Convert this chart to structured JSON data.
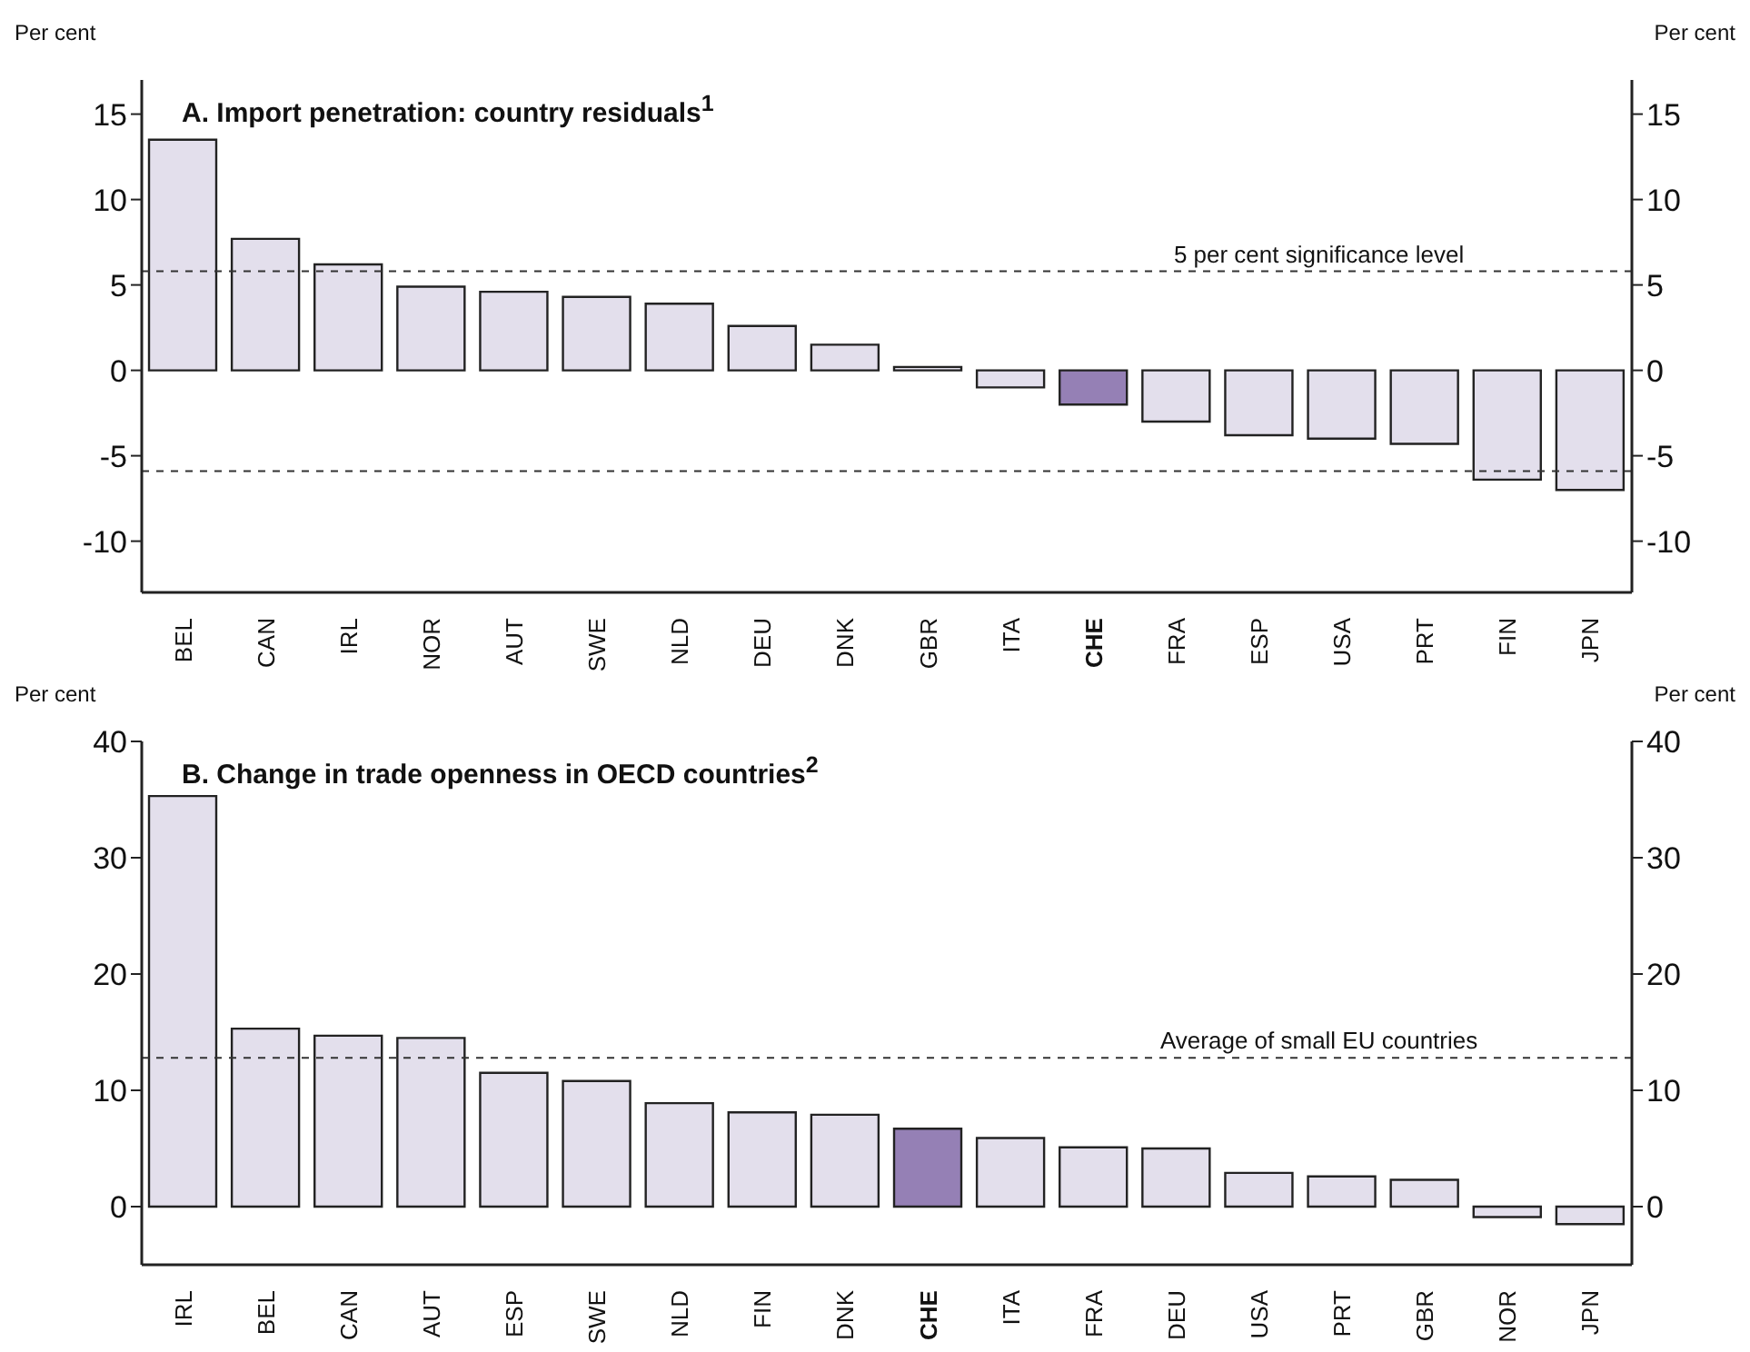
{
  "chart_data": [
    {
      "type": "bar",
      "title": "A. Import penetration: country residuals$^{1}$",
      "ylabel": "Per cent",
      "y2label": "Per cent",
      "categories": [
        "BEL",
        "CAN",
        "IRL",
        "NOR",
        "AUT",
        "SWE",
        "NLD",
        "DEU",
        "DNK",
        "GBR",
        "ITA",
        "CHE",
        "FRA",
        "ESP",
        "USA",
        "PRT",
        "FIN",
        "JPN"
      ],
      "values": [
        13.5,
        7.7,
        6.2,
        4.9,
        4.6,
        4.3,
        3.9,
        2.6,
        1.5,
        0.2,
        -1.0,
        -2.0,
        -3.0,
        -3.8,
        -4.0,
        -4.3,
        -6.4,
        -7.0
      ],
      "colors": [
        "#e3dfec",
        "#e3dfec",
        "#e3dfec",
        "#e3dfec",
        "#e3dfec",
        "#e3dfec",
        "#e3dfec",
        "#e3dfec",
        "#e3dfec",
        "#e3dfec",
        "#e3dfec",
        "#9580b5",
        "#e3dfec",
        "#e3dfec",
        "#e3dfec",
        "#e3dfec",
        "#e3dfec",
        "#e3dfec"
      ],
      "ylim": [
        -13,
        17
      ],
      "yticks": [
        -10,
        -5,
        0,
        5,
        10,
        15
      ],
      "y2lim": [
        -13,
        17
      ],
      "y2ticks": [
        -10,
        -5,
        0,
        5,
        10,
        15
      ],
      "grid": false,
      "legend": false,
      "ref_lines": [
        {
          "axis": "y",
          "value": 5.8,
          "label": "5 per cent significance level",
          "line_style": "dashed"
        },
        {
          "axis": "y",
          "value": -5.9,
          "line_style": "dashed"
        }
      ]
    },
    {
      "type": "bar",
      "title": "B. Change in trade openness in OECD countries$^{2}$",
      "ylabel": "Per cent",
      "y2label": "Per cent",
      "categories": [
        "IRL",
        "BEL",
        "CAN",
        "AUT",
        "ESP",
        "SWE",
        "NLD",
        "FIN",
        "DNK",
        "CHE",
        "ITA",
        "FRA",
        "DEU",
        "USA",
        "PRT",
        "GBR",
        "NOR",
        "JPN"
      ],
      "values": [
        35.3,
        15.3,
        14.7,
        14.5,
        11.5,
        10.8,
        8.9,
        8.1,
        7.9,
        6.7,
        5.9,
        5.1,
        5.0,
        2.9,
        2.6,
        2.3,
        -0.9,
        -1.5
      ],
      "colors": [
        "#e3dfec",
        "#e3dfec",
        "#e3dfec",
        "#e3dfec",
        "#e3dfec",
        "#e3dfec",
        "#e3dfec",
        "#e3dfec",
        "#e3dfec",
        "#9580b5",
        "#e3dfec",
        "#e3dfec",
        "#e3dfec",
        "#e3dfec",
        "#e3dfec",
        "#e3dfec",
        "#e3dfec",
        "#e3dfec"
      ],
      "ylim": [
        -5,
        40
      ],
      "yticks": [
        0,
        10,
        20,
        30,
        40
      ],
      "y2lim": [
        -5,
        40
      ],
      "y2ticks": [
        0,
        10,
        20,
        30,
        40
      ],
      "grid": false,
      "legend": false,
      "ref_lines": [
        {
          "axis": "y",
          "value": 12.8,
          "label": "Average of small EU countries",
          "line_style": "dashed"
        }
      ]
    }
  ]
}
